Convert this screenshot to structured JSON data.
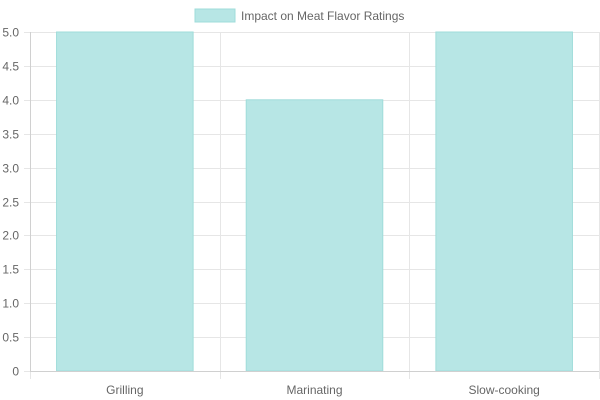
{
  "chart_data": {
    "type": "bar",
    "categories": [
      "Grilling",
      "Marinating",
      "Slow-cooking"
    ],
    "series": [
      {
        "name": "Impact on Meat Flavor Ratings",
        "values": [
          5,
          4,
          5
        ]
      }
    ],
    "ylim": [
      0,
      5
    ],
    "yticks": [
      "0",
      "0.5",
      "1.0",
      "1.5",
      "2.0",
      "2.5",
      "3.0",
      "3.5",
      "4.0",
      "4.5",
      "5.0"
    ],
    "legend_position": "top-center",
    "grid": true,
    "colors": {
      "bar_fill": "#b7e6e5",
      "bar_stroke": "#9fdcda"
    }
  }
}
